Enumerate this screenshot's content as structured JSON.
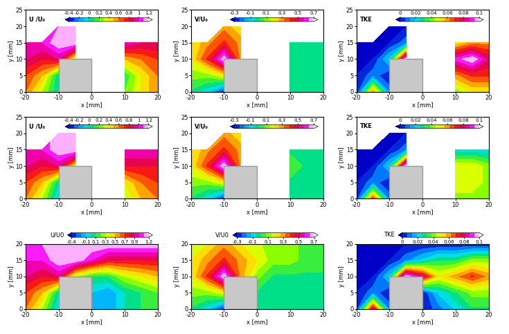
{
  "chart_data": [
    {
      "type": "contour",
      "title": "U /U₀",
      "x_label": "x [mm]",
      "y_label": "y [mm]",
      "xlim": [
        -20,
        20
      ],
      "ylim": [
        0,
        25
      ],
      "xticks": [
        -20,
        -10,
        0,
        10,
        20
      ],
      "yticks": [
        0,
        5,
        10,
        15,
        20,
        25
      ],
      "obstacle": {
        "x": [
          -10,
          0
        ],
        "y": [
          0,
          10
        ]
      },
      "x": [
        -20,
        -15,
        -10,
        -5,
        0,
        5,
        10,
        15,
        20
      ],
      "y": [
        0,
        5,
        10,
        15,
        20
      ],
      "cells": [
        [
          0.6,
          0.3,
          0.0,
          null,
          null,
          null,
          0.2,
          0.4,
          0.6
        ],
        [
          0.7,
          0.5,
          0.0,
          null,
          null,
          null,
          0.1,
          0.4,
          0.6
        ],
        [
          0.9,
          0.8,
          0.9,
          0.3,
          null,
          null,
          0.5,
          0.6,
          0.7
        ],
        [
          1.0,
          1.0,
          1.2,
          1.2,
          null,
          null,
          1.0,
          0.9,
          0.9
        ],
        [
          null,
          null,
          1.1,
          1.1,
          null,
          null,
          null,
          null,
          null
        ]
      ],
      "colorbar_range": [
        -0.4,
        1.2
      ],
      "colorbar_ticks": [
        -0.4,
        -0.2,
        0,
        0.2,
        0.4,
        0.6,
        0.8,
        1,
        1.2
      ]
    },
    {
      "type": "contour",
      "title": "V/U₀",
      "x_label": "x [mm]",
      "y_label": "y [mm]",
      "xlim": [
        -20,
        20
      ],
      "ylim": [
        0,
        25
      ],
      "xticks": [
        -20,
        -10,
        0,
        10,
        20
      ],
      "yticks": [
        0,
        5,
        10,
        15,
        20,
        25
      ],
      "obstacle": {
        "x": [
          -10,
          0
        ],
        "y": [
          0,
          10
        ]
      },
      "x": [
        -20,
        -15,
        -10,
        -5,
        0,
        5,
        10,
        15,
        20
      ],
      "y": [
        0,
        5,
        10,
        15,
        20
      ],
      "cells": [
        [
          0.0,
          -0.1,
          -0.3,
          null,
          null,
          null,
          0.0,
          0.0,
          0.0
        ],
        [
          0.1,
          0.1,
          0.2,
          null,
          null,
          null,
          0.0,
          0.0,
          0.0
        ],
        [
          0.2,
          0.4,
          0.7,
          0.3,
          null,
          null,
          0.0,
          0.0,
          0.0
        ],
        [
          0.2,
          0.3,
          0.4,
          0.3,
          null,
          null,
          0.0,
          0.0,
          0.0
        ],
        [
          null,
          null,
          0.3,
          0.2,
          null,
          null,
          null,
          null,
          null
        ]
      ],
      "colorbar_range": [
        -0.3,
        0.7
      ],
      "colorbar_ticks": [
        -0.3,
        -0.1,
        0.1,
        0.3,
        0.5,
        0.7
      ]
    },
    {
      "type": "contour",
      "title": "TKE",
      "x_label": "x [mm]",
      "y_label": "y [mm]",
      "xlim": [
        -20,
        20
      ],
      "ylim": [
        0,
        25
      ],
      "xticks": [
        -20,
        -10,
        0,
        10,
        20
      ],
      "yticks": [
        0,
        5,
        10,
        15,
        20,
        25
      ],
      "obstacle": {
        "x": [
          -10,
          0
        ],
        "y": [
          0,
          10
        ]
      },
      "x": [
        -20,
        -15,
        -10,
        -5,
        0,
        5,
        10,
        15,
        20
      ],
      "y": [
        0,
        5,
        10,
        15,
        20
      ],
      "cells": [
        [
          0.0,
          0.06,
          0.01,
          null,
          null,
          null,
          0.04,
          0.05,
          0.05
        ],
        [
          0.0,
          0.01,
          0.0,
          null,
          null,
          null,
          0.06,
          0.07,
          0.07
        ],
        [
          0.0,
          0.0,
          0.02,
          0.1,
          null,
          null,
          0.09,
          0.1,
          0.08
        ],
        [
          0.0,
          0.0,
          0.0,
          0.01,
          null,
          null,
          0.05,
          0.06,
          0.06
        ],
        [
          null,
          null,
          0.0,
          0.0,
          null,
          null,
          null,
          null,
          null
        ]
      ],
      "colorbar_range": [
        0,
        0.1
      ],
      "colorbar_ticks": [
        0,
        0.02,
        0.04,
        0.06,
        0.08,
        0.1
      ]
    },
    {
      "type": "contour",
      "title": "U /U₀",
      "x_label": "x [mm]",
      "y_label": "y [mm]",
      "xlim": [
        -20,
        20
      ],
      "ylim": [
        0,
        25
      ],
      "xticks": [
        -20,
        -10,
        0,
        10,
        20
      ],
      "yticks": [
        0,
        5,
        10,
        15,
        20,
        25
      ],
      "obstacle": {
        "x": [
          -10,
          0
        ],
        "y": [
          0,
          10
        ]
      },
      "x": [
        -20,
        -15,
        -10,
        -5,
        0,
        5,
        10,
        15,
        20
      ],
      "y": [
        0,
        5,
        10,
        15,
        20
      ],
      "cells": [
        [
          0.6,
          0.3,
          -0.1,
          null,
          null,
          null,
          0.3,
          0.5,
          0.6
        ],
        [
          0.7,
          0.5,
          0.0,
          null,
          null,
          null,
          0.4,
          0.6,
          0.7
        ],
        [
          0.9,
          0.8,
          0.9,
          0.4,
          null,
          null,
          0.8,
          0.8,
          0.8
        ],
        [
          1.0,
          1.0,
          1.2,
          1.2,
          null,
          null,
          1.0,
          1.0,
          1.0
        ],
        [
          null,
          null,
          1.2,
          1.2,
          null,
          null,
          null,
          null,
          null
        ]
      ],
      "colorbar_range": [
        -0.4,
        1.2
      ],
      "colorbar_ticks": [
        -0.4,
        -0.2,
        0,
        0.2,
        0.4,
        0.6,
        0.8,
        1,
        1.2
      ]
    },
    {
      "type": "contour",
      "title": "V/U₀",
      "x_label": "x [mm]",
      "y_label": "y [mm]",
      "xlim": [
        -20,
        20
      ],
      "ylim": [
        0,
        25
      ],
      "xticks": [
        -20,
        -10,
        0,
        10,
        20
      ],
      "yticks": [
        0,
        5,
        10,
        15,
        20,
        25
      ],
      "obstacle": {
        "x": [
          -10,
          0
        ],
        "y": [
          0,
          10
        ]
      },
      "x": [
        -20,
        -15,
        -10,
        -5,
        0,
        5,
        10,
        15,
        20
      ],
      "y": [
        0,
        5,
        10,
        15,
        20
      ],
      "cells": [
        [
          0.0,
          -0.1,
          -0.3,
          null,
          null,
          null,
          0.0,
          0.0,
          0.0
        ],
        [
          0.1,
          0.1,
          0.2,
          null,
          null,
          null,
          0.0,
          0.0,
          0.0
        ],
        [
          0.2,
          0.4,
          0.7,
          0.3,
          null,
          null,
          0.05,
          0.0,
          0.0
        ],
        [
          0.2,
          0.3,
          0.4,
          0.3,
          null,
          null,
          0.0,
          0.0,
          0.0
        ],
        [
          null,
          null,
          0.3,
          0.2,
          null,
          null,
          null,
          null,
          null
        ]
      ],
      "colorbar_range": [
        -0.3,
        0.7
      ],
      "colorbar_ticks": [
        -0.3,
        -0.1,
        0.1,
        0.3,
        0.5,
        0.7
      ]
    },
    {
      "type": "contour",
      "title": "TKE",
      "x_label": "x [mm]",
      "y_label": "y [mm]",
      "xlim": [
        -20,
        20
      ],
      "ylim": [
        0,
        25
      ],
      "xticks": [
        -20,
        -10,
        0,
        10,
        20
      ],
      "yticks": [
        0,
        5,
        10,
        15,
        20,
        25
      ],
      "obstacle": {
        "x": [
          -10,
          0
        ],
        "y": [
          0,
          10
        ]
      },
      "x": [
        -20,
        -15,
        -10,
        -5,
        0,
        5,
        10,
        15,
        20
      ],
      "y": [
        0,
        5,
        10,
        15,
        20
      ],
      "cells": [
        [
          0.0,
          0.07,
          0.01,
          null,
          null,
          null,
          0.04,
          0.04,
          0.04
        ],
        [
          0.0,
          0.01,
          0.0,
          null,
          null,
          null,
          0.05,
          0.05,
          0.04
        ],
        [
          0.0,
          0.0,
          0.02,
          0.1,
          null,
          null,
          0.05,
          0.05,
          0.04
        ],
        [
          0.0,
          0.0,
          0.0,
          0.01,
          null,
          null,
          0.02,
          0.02,
          0.02
        ],
        [
          null,
          null,
          0.0,
          0.0,
          null,
          null,
          null,
          null,
          null
        ]
      ],
      "colorbar_range": [
        0,
        0.1
      ],
      "colorbar_ticks": [
        0,
        0.02,
        0.04,
        0.06,
        0.08,
        0.1
      ]
    },
    {
      "type": "contour",
      "title": "U/U0",
      "x_label": "x [mm]",
      "y_label": "y [mm]",
      "xlim": [
        -20,
        20
      ],
      "ylim": [
        0,
        20
      ],
      "xticks": [
        -20,
        -10,
        0,
        10,
        20
      ],
      "yticks": [
        0,
        5,
        10,
        15,
        20
      ],
      "obstacle": {
        "x": [
          -10,
          0
        ],
        "y": [
          0,
          10
        ]
      },
      "x": [
        -20,
        -15,
        -10,
        -5,
        0,
        5,
        10,
        15,
        20
      ],
      "y": [
        0,
        5,
        10,
        15,
        20
      ],
      "cells": [
        [
          0.6,
          0.3,
          -0.1,
          null,
          -0.1,
          -0.2,
          0.0,
          0.1,
          0.2
        ],
        [
          0.7,
          0.5,
          0.0,
          null,
          -0.1,
          -0.2,
          0.0,
          0.1,
          0.2
        ],
        [
          0.9,
          0.8,
          0.9,
          0.3,
          0.1,
          0.1,
          0.3,
          0.4,
          0.5
        ],
        [
          1.0,
          1.0,
          1.2,
          1.2,
          1.0,
          0.8,
          0.8,
          0.8,
          0.8
        ],
        [
          1.1,
          1.1,
          1.2,
          1.2,
          1.2,
          1.2,
          1.2,
          1.2,
          1.2
        ]
      ],
      "colorbar_range": [
        -0.4,
        1.2
      ],
      "colorbar_ticks": [
        -0.4,
        -0.1,
        0.1,
        0.3,
        0.5,
        0.7,
        0.9,
        1.2
      ]
    },
    {
      "type": "contour",
      "title": "V/U0",
      "x_label": "x [mm]",
      "y_label": "y [mm]",
      "xlim": [
        -20,
        20
      ],
      "ylim": [
        0,
        20
      ],
      "xticks": [
        -20,
        -10,
        0,
        10,
        20
      ],
      "yticks": [
        0,
        5,
        10,
        15,
        20
      ],
      "obstacle": {
        "x": [
          -10,
          0
        ],
        "y": [
          0,
          10
        ]
      },
      "x": [
        -20,
        -15,
        -10,
        -5,
        0,
        5,
        10,
        15,
        20
      ],
      "y": [
        0,
        5,
        10,
        15,
        20
      ],
      "cells": [
        [
          0.0,
          -0.1,
          -0.3,
          null,
          0.0,
          0.0,
          0.0,
          0.0,
          0.0
        ],
        [
          0.1,
          0.1,
          0.2,
          null,
          0.0,
          -0.05,
          0.0,
          0.0,
          0.0
        ],
        [
          0.2,
          0.4,
          0.7,
          0.3,
          0.1,
          0.0,
          0.0,
          0.0,
          0.0
        ],
        [
          0.2,
          0.3,
          0.4,
          0.3,
          0.2,
          0.1,
          0.1,
          0.05,
          0.05
        ],
        [
          0.2,
          0.2,
          0.3,
          0.2,
          0.15,
          0.1,
          0.1,
          0.05,
          0.05
        ]
      ],
      "colorbar_range": [
        -0.3,
        0.7
      ],
      "colorbar_ticks": [
        -0.3,
        -0.1,
        0.1,
        0.3,
        0.5,
        0.7
      ]
    },
    {
      "type": "contour",
      "title": "TKE",
      "x_label": "x [mm]",
      "y_label": "y [mm]",
      "xlim": [
        -20,
        20
      ],
      "ylim": [
        0,
        20
      ],
      "xticks": [
        -20,
        -10,
        0,
        10,
        20
      ],
      "yticks": [
        0,
        5,
        10,
        15,
        20
      ],
      "obstacle": {
        "x": [
          -10,
          0
        ],
        "y": [
          0,
          10
        ]
      },
      "x": [
        -20,
        -15,
        -10,
        -5,
        0,
        5,
        10,
        15,
        20
      ],
      "y": [
        0,
        5,
        10,
        15,
        20
      ],
      "cells": [
        [
          0.0,
          0.08,
          0.01,
          null,
          0.0,
          0.01,
          0.02,
          0.03,
          0.03
        ],
        [
          0.0,
          0.01,
          0.0,
          null,
          0.0,
          0.02,
          0.03,
          0.04,
          0.04
        ],
        [
          0.0,
          0.0,
          0.02,
          0.1,
          0.08,
          0.05,
          0.06,
          0.07,
          0.06
        ],
        [
          0.0,
          0.0,
          0.0,
          0.01,
          0.02,
          0.03,
          0.03,
          0.04,
          0.04
        ],
        [
          0.0,
          0.0,
          0.0,
          0.0,
          0.0,
          0.0,
          0.0,
          0.0,
          0.0
        ]
      ],
      "colorbar_range": [
        0,
        0.1
      ],
      "colorbar_ticks": [
        0,
        0.02,
        0.04,
        0.06,
        0.08,
        0.1
      ]
    }
  ]
}
